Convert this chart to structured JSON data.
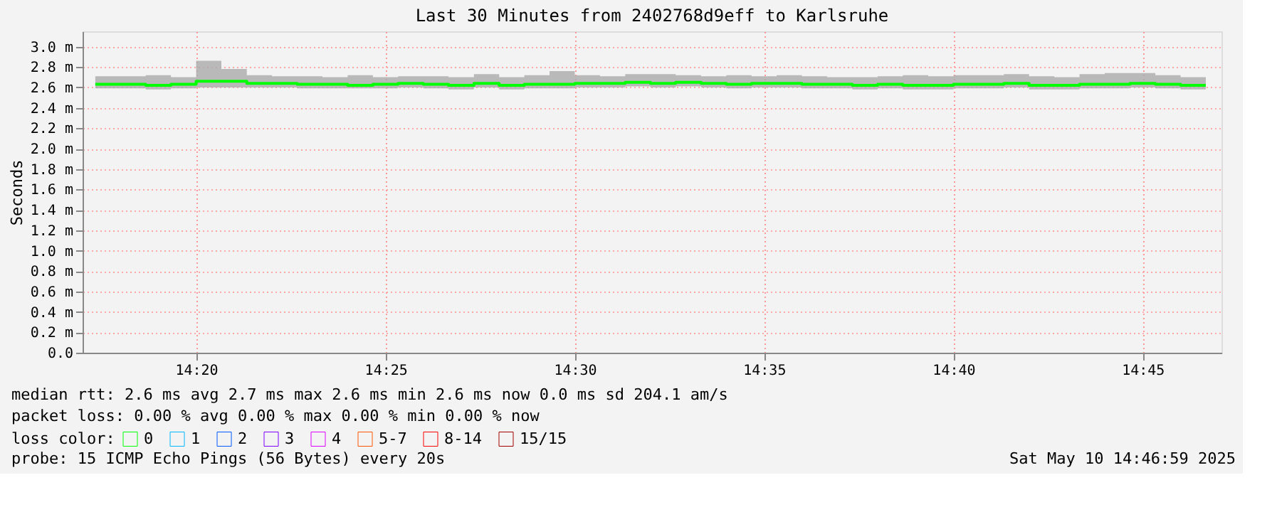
{
  "chart_data": {
    "type": "step",
    "title": "Last 30 Minutes from 2402768d9eff to Karlsruhe",
    "ylabel": "Seconds",
    "x": [
      14.2889,
      14.3,
      14.3111,
      14.3222,
      14.3333,
      14.3444,
      14.3556,
      14.3667,
      14.3778,
      14.3889,
      14.4,
      14.4111,
      14.4222,
      14.4333,
      14.4444,
      14.4556,
      14.4667,
      14.4778,
      14.4889,
      14.5,
      14.5111,
      14.5222,
      14.5333,
      14.5444,
      14.5556,
      14.5667,
      14.5778,
      14.5889,
      14.6,
      14.6111,
      14.6222,
      14.6333,
      14.6444,
      14.6556,
      14.6667,
      14.6778,
      14.6889,
      14.7,
      14.7111,
      14.7222,
      14.7333,
      14.7444,
      14.7556,
      14.7667,
      14.7778
    ],
    "xlim": [
      14.2833,
      14.7847
    ],
    "xticks": [
      {
        "value": 14.3333,
        "label": "14:20"
      },
      {
        "value": 14.4167,
        "label": "14:25"
      },
      {
        "value": 14.5,
        "label": "14:30"
      },
      {
        "value": 14.5833,
        "label": "14:35"
      },
      {
        "value": 14.6667,
        "label": "14:40"
      },
      {
        "value": 14.75,
        "label": "14:45"
      }
    ],
    "ylim": [
      0,
      3.15
    ],
    "yticks": [
      {
        "value": 0,
        "label": "0.0"
      },
      {
        "value": 0.2,
        "label": "0.2 m"
      },
      {
        "value": 0.4,
        "label": "0.4 m"
      },
      {
        "value": 0.6,
        "label": "0.6 m"
      },
      {
        "value": 0.8,
        "label": "0.8 m"
      },
      {
        "value": 1.0,
        "label": "1.0 m"
      },
      {
        "value": 1.2,
        "label": "1.2 m"
      },
      {
        "value": 1.4,
        "label": "1.4 m"
      },
      {
        "value": 1.6,
        "label": "1.6 m"
      },
      {
        "value": 1.8,
        "label": "1.8 m"
      },
      {
        "value": 2.0,
        "label": "2.0 m"
      },
      {
        "value": 2.2,
        "label": "2.2 m"
      },
      {
        "value": 2.4,
        "label": "2.4 m"
      },
      {
        "value": 2.6,
        "label": "2.6 m"
      },
      {
        "value": 2.8,
        "label": "2.8 m"
      },
      {
        "value": 3.0,
        "label": "3.0 m"
      }
    ],
    "grid": true,
    "legend": "bottom",
    "legend_title": "loss color:",
    "series": [
      {
        "name": "0",
        "color": "#00ff00",
        "values": [
          2.63,
          2.63,
          2.62,
          2.63,
          2.66,
          2.66,
          2.64,
          2.64,
          2.63,
          2.63,
          2.62,
          2.63,
          2.64,
          2.63,
          2.62,
          2.64,
          2.62,
          2.63,
          2.63,
          2.64,
          2.64,
          2.65,
          2.64,
          2.65,
          2.64,
          2.63,
          2.64,
          2.64,
          2.63,
          2.63,
          2.62,
          2.63,
          2.62,
          2.62,
          2.63,
          2.63,
          2.64,
          2.62,
          2.62,
          2.63,
          2.63,
          2.64,
          2.63,
          2.62,
          2.62
        ],
        "lower": [
          2.59,
          2.59,
          2.58,
          2.59,
          2.6,
          2.6,
          2.6,
          2.6,
          2.59,
          2.59,
          2.59,
          2.59,
          2.6,
          2.59,
          2.58,
          2.6,
          2.58,
          2.59,
          2.59,
          2.6,
          2.6,
          2.61,
          2.6,
          2.61,
          2.6,
          2.59,
          2.6,
          2.6,
          2.59,
          2.59,
          2.58,
          2.59,
          2.58,
          2.58,
          2.59,
          2.59,
          2.6,
          2.58,
          2.58,
          2.59,
          2.59,
          2.6,
          2.59,
          2.58,
          2.58
        ],
        "upper": [
          2.71,
          2.71,
          2.72,
          2.7,
          2.86,
          2.78,
          2.72,
          2.71,
          2.71,
          2.7,
          2.72,
          2.7,
          2.71,
          2.71,
          2.7,
          2.73,
          2.7,
          2.72,
          2.76,
          2.72,
          2.71,
          2.73,
          2.73,
          2.72,
          2.71,
          2.72,
          2.71,
          2.72,
          2.71,
          2.7,
          2.7,
          2.71,
          2.72,
          2.71,
          2.72,
          2.72,
          2.73,
          2.71,
          2.7,
          2.73,
          2.74,
          2.74,
          2.72,
          2.7,
          2.7
        ]
      },
      {
        "name": "1",
        "color": "#00b8ff",
        "values": [
          null,
          null,
          null,
          null,
          null,
          null,
          null,
          null,
          null,
          null,
          null,
          null,
          null,
          null,
          null,
          null,
          null,
          null,
          null,
          null,
          null,
          null,
          null,
          null,
          null,
          null,
          null,
          null,
          null,
          null,
          null,
          null,
          null,
          null,
          null,
          null,
          null,
          null,
          null,
          null,
          null,
          null,
          null,
          null,
          null
        ]
      },
      {
        "name": "2",
        "color": "#0059ff",
        "values": [
          null,
          null,
          null,
          null,
          null,
          null,
          null,
          null,
          null,
          null,
          null,
          null,
          null,
          null,
          null,
          null,
          null,
          null,
          null,
          null,
          null,
          null,
          null,
          null,
          null,
          null,
          null,
          null,
          null,
          null,
          null,
          null,
          null,
          null,
          null,
          null,
          null,
          null,
          null,
          null,
          null,
          null,
          null,
          null,
          null
        ]
      },
      {
        "name": "3",
        "color": "#7e00ff",
        "values": [
          null,
          null,
          null,
          null,
          null,
          null,
          null,
          null,
          null,
          null,
          null,
          null,
          null,
          null,
          null,
          null,
          null,
          null,
          null,
          null,
          null,
          null,
          null,
          null,
          null,
          null,
          null,
          null,
          null,
          null,
          null,
          null,
          null,
          null,
          null,
          null,
          null,
          null,
          null,
          null,
          null,
          null,
          null,
          null,
          null
        ]
      },
      {
        "name": "4",
        "color": "#dd00ff",
        "values": [
          null,
          null,
          null,
          null,
          null,
          null,
          null,
          null,
          null,
          null,
          null,
          null,
          null,
          null,
          null,
          null,
          null,
          null,
          null,
          null,
          null,
          null,
          null,
          null,
          null,
          null,
          null,
          null,
          null,
          null,
          null,
          null,
          null,
          null,
          null,
          null,
          null,
          null,
          null,
          null,
          null,
          null,
          null,
          null,
          null
        ]
      },
      {
        "name": "5-7",
        "color": "#ff5500",
        "values": [
          null,
          null,
          null,
          null,
          null,
          null,
          null,
          null,
          null,
          null,
          null,
          null,
          null,
          null,
          null,
          null,
          null,
          null,
          null,
          null,
          null,
          null,
          null,
          null,
          null,
          null,
          null,
          null,
          null,
          null,
          null,
          null,
          null,
          null,
          null,
          null,
          null,
          null,
          null,
          null,
          null,
          null,
          null,
          null,
          null
        ]
      },
      {
        "name": "8-14",
        "color": "#ff0000",
        "values": [
          null,
          null,
          null,
          null,
          null,
          null,
          null,
          null,
          null,
          null,
          null,
          null,
          null,
          null,
          null,
          null,
          null,
          null,
          null,
          null,
          null,
          null,
          null,
          null,
          null,
          null,
          null,
          null,
          null,
          null,
          null,
          null,
          null,
          null,
          null,
          null,
          null,
          null,
          null,
          null,
          null,
          null,
          null,
          null,
          null
        ]
      },
      {
        "name": "15/15",
        "color": "#a10000",
        "values": [
          null,
          null,
          null,
          null,
          null,
          null,
          null,
          null,
          null,
          null,
          null,
          null,
          null,
          null,
          null,
          null,
          null,
          null,
          null,
          null,
          null,
          null,
          null,
          null,
          null,
          null,
          null,
          null,
          null,
          null,
          null,
          null,
          null,
          null,
          null,
          null,
          null,
          null,
          null,
          null,
          null,
          null,
          null,
          null,
          null
        ]
      }
    ],
    "annotations": [
      "median rtt:  2.6 ms avg  2.7 ms max  2.6 ms min  2.6 ms now  0.0 ms sd  204.1   am/s",
      "packet loss: 0.00 % avg  0.00 % max  0.00 % min  0.00 % now",
      "probe:       15 ICMP Echo Pings (56 Bytes) every 20s",
      "Sat May 10 14:46:59 2025"
    ]
  }
}
